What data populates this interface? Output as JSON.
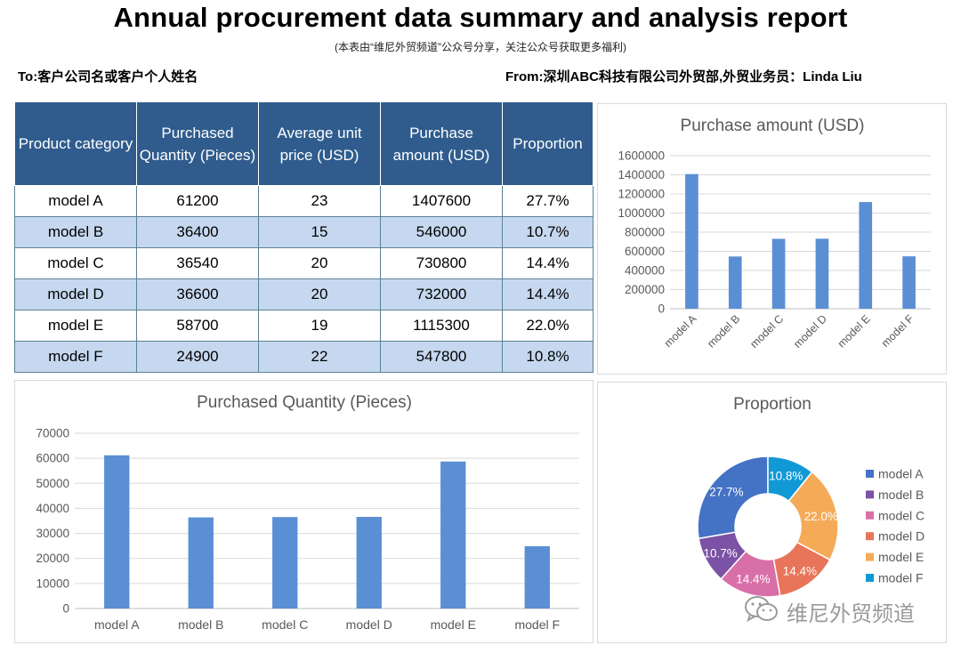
{
  "header": {
    "title": "Annual procurement data summary and analysis report",
    "subtitle": "(本表由“维尼外贸频道”公众号分享，关注公众号获取更多福利)",
    "to": "To:客户公司名或客户个人姓名",
    "from": "From:深圳ABC科技有限公司外贸部,外贸业务员：Linda Liu"
  },
  "table": {
    "headers": [
      "Product category",
      "Purchased Quantity (Pieces)",
      "Average unit price (USD)",
      "Purchase amount (USD)",
      "Proportion"
    ],
    "rows": [
      [
        "model A",
        "61200",
        "23",
        "1407600",
        "27.7%"
      ],
      [
        "model B",
        "36400",
        "15",
        "546000",
        "10.7%"
      ],
      [
        "model C",
        "36540",
        "20",
        "730800",
        "14.4%"
      ],
      [
        "model D",
        "36600",
        "20",
        "732000",
        "14.4%"
      ],
      [
        "model E",
        "58700",
        "19",
        "1115300",
        "22.0%"
      ],
      [
        "model F",
        "24900",
        "22",
        "547800",
        "10.8%"
      ]
    ]
  },
  "colors": {
    "header_bg": "#2f5c8d",
    "row_alt": "#c6d8ef",
    "bar": "#5b8fd4",
    "pie": [
      "#4472c4",
      "#7b52a5",
      "#d96fa8",
      "#e8745a",
      "#f5aa58",
      "#1199d6"
    ]
  },
  "watermark": {
    "icon": "wechat-icon",
    "text": "维尼外贸频道"
  },
  "chart_data": [
    {
      "id": "amount",
      "type": "bar",
      "title": "Purchase amount (USD)",
      "categories": [
        "model A",
        "model B",
        "model C",
        "model D",
        "model E",
        "model F"
      ],
      "values": [
        1407600,
        546000,
        730800,
        732000,
        1115300,
        547800
      ],
      "ylim": [
        0,
        1600000
      ],
      "yticks": [
        0,
        200000,
        400000,
        600000,
        800000,
        1000000,
        1200000,
        1400000,
        1600000
      ],
      "grid": true,
      "legend": "none"
    },
    {
      "id": "qty",
      "type": "bar",
      "title": "Purchased Quantity (Pieces)",
      "categories": [
        "model A",
        "model B",
        "model C",
        "model D",
        "model E",
        "model F"
      ],
      "values": [
        61200,
        36400,
        36540,
        36600,
        58700,
        24900
      ],
      "ylim": [
        0,
        70000
      ],
      "yticks": [
        0,
        10000,
        20000,
        30000,
        40000,
        50000,
        60000,
        70000
      ],
      "grid": true,
      "legend": "none"
    },
    {
      "id": "prop",
      "type": "pie",
      "subtype": "doughnut",
      "title": "Proportion",
      "categories": [
        "model A",
        "model B",
        "model C",
        "model D",
        "model E",
        "model F"
      ],
      "values": [
        27.7,
        10.7,
        14.4,
        14.4,
        22.0,
        10.8
      ],
      "labels": [
        "27.7%",
        "10.7%",
        "14.4%",
        "14.4%",
        "22.0%",
        "10.8%"
      ],
      "legend": "right"
    }
  ]
}
